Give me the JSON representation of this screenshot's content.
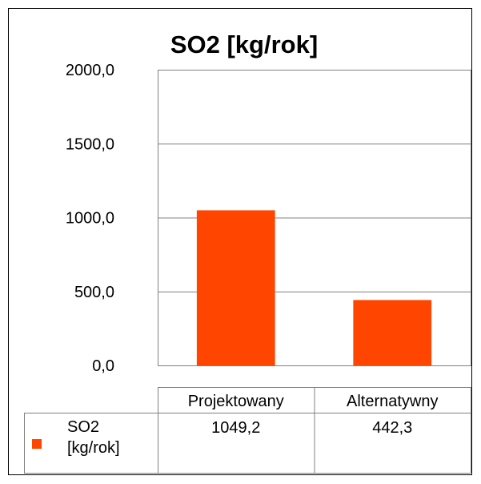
{
  "chart_data": {
    "type": "bar",
    "title": "SO2 [kg/rok]",
    "categories": [
      "Projektowany",
      "Alternatywny"
    ],
    "series": [
      {
        "name": "SO2 [kg/rok]",
        "color": "#ff4500",
        "values": [
          1049.2,
          442.3
        ],
        "value_labels": [
          "1049,2",
          "442,3"
        ]
      }
    ],
    "ylim": [
      0,
      2000
    ],
    "yticks": [
      {
        "value": 0,
        "label": "0,0"
      },
      {
        "value": 500,
        "label": "500,0"
      },
      {
        "value": 1000,
        "label": "1000,0"
      },
      {
        "value": 1500,
        "label": "1500,0"
      },
      {
        "value": 2000,
        "label": "2000,0"
      }
    ],
    "grid": true,
    "data_table": true
  }
}
